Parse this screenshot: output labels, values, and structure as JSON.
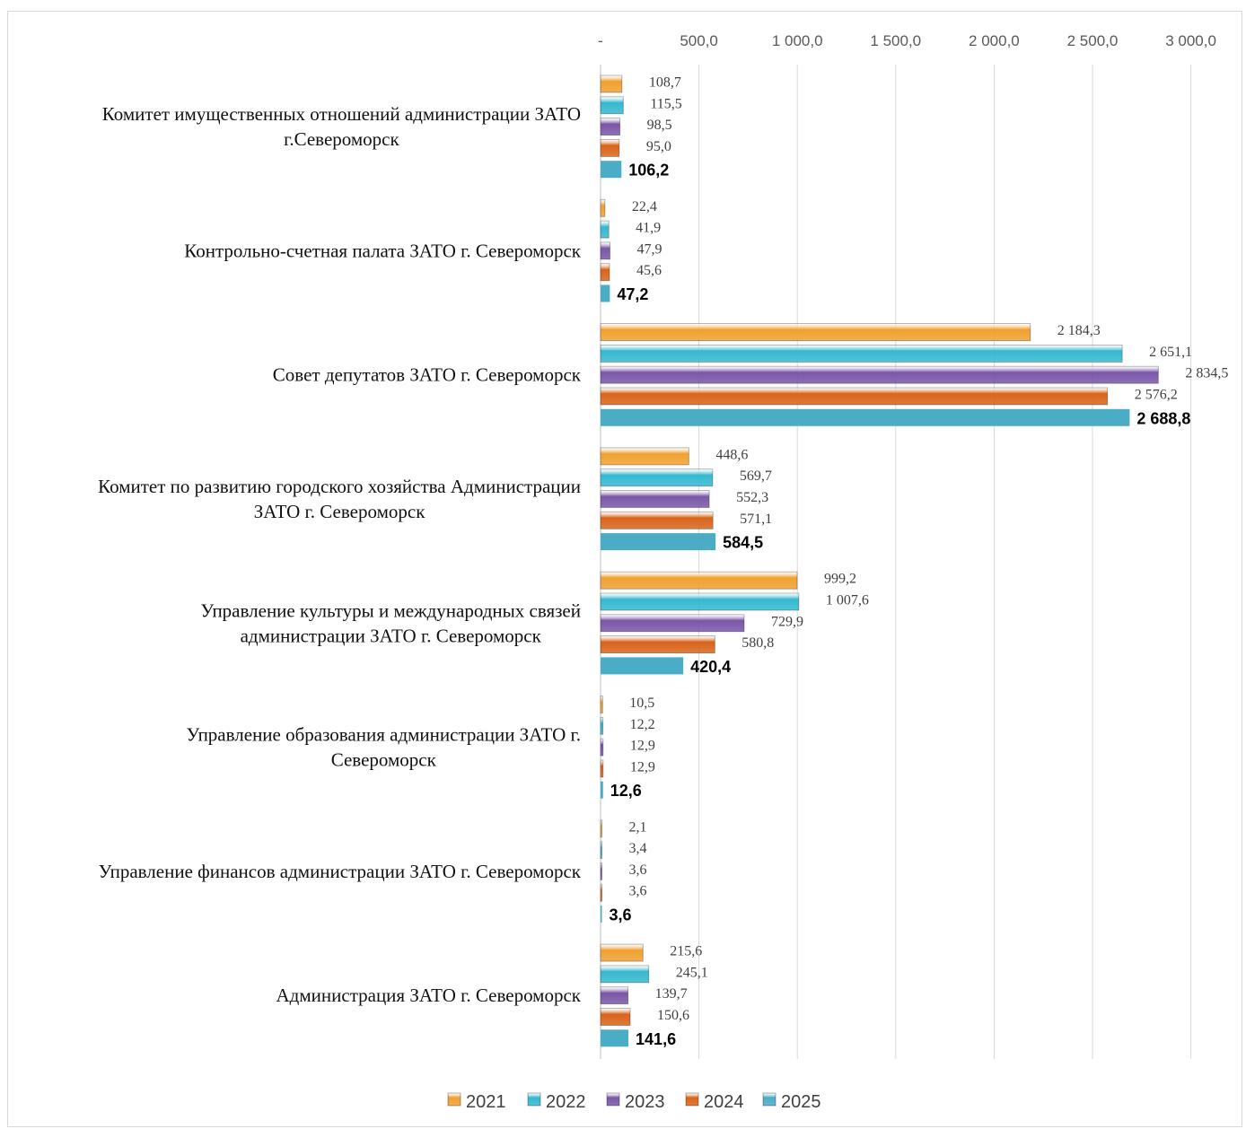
{
  "chart_data": {
    "type": "bar",
    "orientation": "horizontal",
    "xlim": [
      0,
      3000
    ],
    "x_ticks": [
      0,
      500,
      1000,
      1500,
      2000,
      2500,
      3000
    ],
    "x_tick_labels": [
      "-",
      "500,0",
      "1 000,0",
      "1 500,0",
      "2 000,0",
      "2 500,0",
      "3 000,0"
    ],
    "grid": true,
    "legend_position": "bottom",
    "categories": [
      [
        "Комитет имущественных отношений администрации ЗАТО",
        "г.Североморск"
      ],
      [
        "Контрольно-счетная палата ЗАТО г. Североморск"
      ],
      [
        "Совет депутатов ЗАТО г. Североморск"
      ],
      [
        "Комитет по развитию городского хозяйства Администрации",
        "ЗАТО г. Североморск"
      ],
      [
        "Управление культуры и международных связей",
        "администрации ЗАТО г. Североморск"
      ],
      [
        "Управление образования администрации ЗАТО г.",
        "Североморск"
      ],
      [
        "Управление финансов администрации ЗАТО г. Североморск"
      ],
      [
        "Администрация ЗАТО г. Североморск"
      ]
    ],
    "series": [
      {
        "name": "2021",
        "color": "#f0a030",
        "values": [
          108.7,
          22.4,
          2184.3,
          448.6,
          999.2,
          10.5,
          2.1,
          215.6
        ],
        "labels": [
          "108,7",
          "22,4",
          "2 184,3",
          "448,6",
          "999,2",
          "10,5",
          "2,1",
          "215,6"
        ]
      },
      {
        "name": "2022",
        "color": "#35b8d0",
        "values": [
          115.5,
          41.9,
          2651.1,
          569.7,
          1007.6,
          12.2,
          3.4,
          245.1
        ],
        "labels": [
          "115,5",
          "41,9",
          "2 651,1",
          "569,7",
          "1 007,6",
          "12,2",
          "3,4",
          "245,1"
        ]
      },
      {
        "name": "2023",
        "color": "#7a56a8",
        "values": [
          98.5,
          47.9,
          2834.5,
          552.3,
          729.9,
          12.9,
          3.6,
          139.7
        ],
        "labels": [
          "98,5",
          "47,9",
          "2 834,5",
          "552,3",
          "729,9",
          "12,9",
          "3,6",
          "139,7"
        ]
      },
      {
        "name": "2024",
        "color": "#d9641a",
        "values": [
          95.0,
          45.6,
          2576.2,
          571.1,
          580.8,
          12.9,
          3.6,
          150.6
        ],
        "labels": [
          "95,0",
          "45,6",
          "2 576,2",
          "571,1",
          "580,8",
          "12,9",
          "3,6",
          "150,6"
        ]
      },
      {
        "name": "2025",
        "color": "#4bacc6",
        "values": [
          106.2,
          47.2,
          2688.8,
          584.5,
          420.4,
          12.6,
          3.6,
          141.6
        ],
        "labels": [
          "106,2",
          "47,2",
          "2 688,8",
          "584,5",
          "420,4",
          "12,6",
          "3,6",
          "141,6"
        ]
      }
    ]
  }
}
